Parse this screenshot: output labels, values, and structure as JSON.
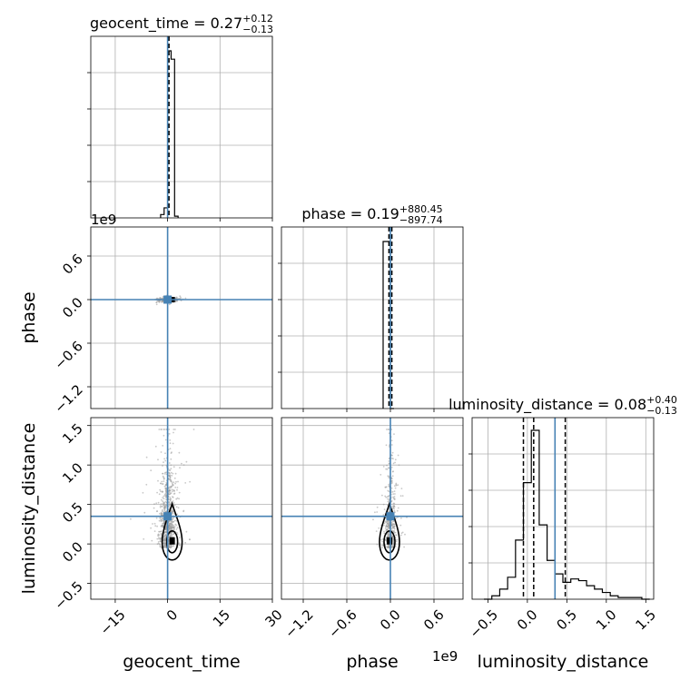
{
  "chart_data": {
    "type": "corner",
    "parameters": [
      "geocent_time",
      "phase",
      "luminosity_distance"
    ],
    "truth_color": "#4682b4",
    "truths": {
      "geocent_time": 0.0,
      "phase": 0.0,
      "luminosity_distance": 0.35
    },
    "titles": [
      {
        "param": "geocent_time",
        "base": "geocent_time = 0.27",
        "plus": "+0.12",
        "minus": "−0.13"
      },
      {
        "param": "phase",
        "base": "phase = 0.19",
        "plus": "+880.45",
        "minus": "−897.74"
      },
      {
        "param": "luminosity_distance",
        "base": "luminosity_distance = 0.08",
        "plus": "+0.40",
        "minus": "−0.13"
      }
    ],
    "axis_labels": {
      "x": [
        "geocent_time",
        "phase",
        "luminosity_distance"
      ],
      "y": [
        "phase",
        "luminosity_distance"
      ]
    },
    "offset_labels": {
      "phase_y": "1e9",
      "phase_x": "1e9"
    },
    "ranges": {
      "geocent_time": [
        -22,
        30
      ],
      "phase_y": [
        -1.5,
        1.0
      ],
      "phase_x": [
        -1.5,
        1.0
      ],
      "luminosity_distance": [
        -0.7,
        1.6
      ]
    },
    "ticks": {
      "geocent_time": {
        "values": [
          -15,
          0,
          15,
          30
        ],
        "labels": [
          "−15",
          "0",
          "15",
          "30"
        ]
      },
      "phase_y": {
        "values": [
          -1.2,
          -0.6,
          0.0,
          0.6
        ],
        "labels": [
          "−1.2",
          "−0.6",
          "0.0",
          "0.6"
        ]
      },
      "phase_x": {
        "values": [
          -1.2,
          -0.6,
          0.0,
          0.6
        ],
        "labels": [
          "−1.2",
          "−0.6",
          "0.0",
          "0.6"
        ]
      },
      "luminosity_distance": {
        "values": [
          -0.5,
          0.0,
          0.5,
          1.0,
          1.5
        ],
        "labels": [
          "−0.5",
          "0.0",
          "0.5",
          "1.0",
          "1.5"
        ]
      }
    },
    "hist_geocent_time": {
      "bin_edges": [
        -2,
        -1,
        0,
        1,
        2,
        3
      ],
      "counts": [
        0.02,
        0.06,
        1.0,
        0.95,
        0.01
      ],
      "quantile_lines": [
        0.14,
        0.27,
        0.39
      ]
    },
    "hist_phase": {
      "bin_edges": [
        -0.1,
        -0.05,
        0.0,
        0.05
      ],
      "counts": [
        1.0,
        1.0,
        0.0
      ],
      "quantile_lines": [
        -0.02,
        0.0,
        0.02
      ]
    },
    "hist_luminosity_distance": {
      "bin_edges": [
        -0.55,
        -0.45,
        -0.35,
        -0.25,
        -0.15,
        -0.05,
        0.05,
        0.15,
        0.25,
        0.35,
        0.45,
        0.55,
        0.65,
        0.75,
        0.85,
        0.95,
        1.05,
        1.15,
        1.25,
        1.35,
        1.45,
        1.55
      ],
      "counts": [
        0.0,
        0.02,
        0.06,
        0.13,
        0.35,
        0.69,
        1.0,
        0.44,
        0.23,
        0.15,
        0.1,
        0.12,
        0.11,
        0.08,
        0.06,
        0.04,
        0.02,
        0.01,
        0.01,
        0.01,
        0.0
      ],
      "quantile_lines": [
        -0.05,
        0.08,
        0.48
      ]
    },
    "contour_center_ld": 0.05,
    "grid": true
  }
}
